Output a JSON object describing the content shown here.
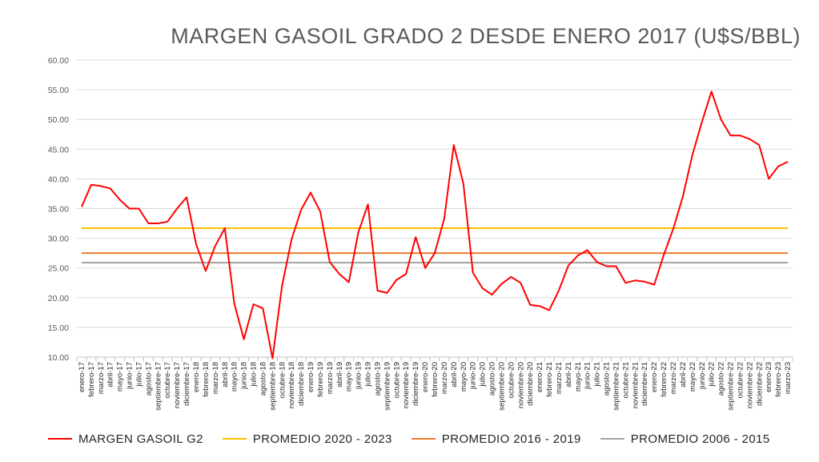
{
  "chart_data": {
    "type": "line",
    "title": "MARGEN GASOIL GRADO 2 DESDE ENERO 2017 (U$S/BBL)",
    "xlabel": "",
    "ylabel": "",
    "ylim": [
      10,
      60
    ],
    "yticks": [
      "10.00",
      "15.00",
      "20.00",
      "25.00",
      "30.00",
      "35.00",
      "40.00",
      "45.00",
      "50.00",
      "55.00",
      "60.00"
    ],
    "grid": true,
    "legend_position": "bottom",
    "categories": [
      "enero-17",
      "febrero-17",
      "marzo-17",
      "abril-17",
      "mayo-17",
      "junio-17",
      "julio-17",
      "agosto-17",
      "septiembre-17",
      "octubre-17",
      "noviembre-17",
      "diciembre-17",
      "enero-18",
      "febrero-18",
      "marzo-18",
      "abril-18",
      "mayo-18",
      "junio-18",
      "julio-18",
      "agosto-18",
      "septiembre-18",
      "octubre-18",
      "noviembre-18",
      "diciembre-18",
      "enero-19",
      "febrero-19",
      "marzo-19",
      "abril-19",
      "mayo-19",
      "junio-19",
      "julio-19",
      "agosto-19",
      "septiembre-19",
      "octubre-19",
      "noviembre-19",
      "diciembre-19",
      "enero-20",
      "febrero-20",
      "marzo-20",
      "abril-20",
      "mayo-20",
      "junio-20",
      "julio-20",
      "agosto-20",
      "septiembre-20",
      "octubre-20",
      "noviembre-20",
      "diciembre-20",
      "enero-21",
      "febrero-21",
      "marzo-21",
      "abril-21",
      "mayo-21",
      "junio-21",
      "julio-21",
      "agosto-21",
      "septiembre-21",
      "octubre-21",
      "noviembre-21",
      "diciembre-21",
      "enero-22",
      "febrero-22",
      "marzo-22",
      "abril-22",
      "mayo-22",
      "junio-22",
      "julio-22",
      "agosto-22",
      "septiembre-22",
      "octubre-22",
      "noviembre-22",
      "diciembre-22",
      "enero-23",
      "febrero-23",
      "marzo-23"
    ],
    "series": [
      {
        "name": "MARGEN GASOIL G2",
        "color": "#ff0000",
        "values": [
          35.3,
          39.0,
          38.8,
          38.4,
          36.5,
          35.0,
          35.0,
          32.5,
          32.5,
          32.8,
          35.0,
          36.9,
          29.0,
          24.5,
          28.7,
          31.7,
          19.0,
          13.0,
          18.9,
          18.2,
          9.8,
          22.0,
          29.8,
          34.8,
          37.7,
          34.5,
          26.0,
          24.0,
          22.6,
          31.0,
          35.7,
          21.2,
          20.8,
          23.0,
          24.0,
          30.2,
          25.0,
          27.5,
          33.3,
          45.7,
          39.2,
          24.2,
          21.6,
          20.5,
          22.3,
          23.5,
          22.5,
          18.8,
          18.6,
          17.9,
          21.2,
          25.4,
          27.1,
          28.0,
          26.0,
          25.3,
          25.3,
          22.5,
          22.9,
          22.7,
          22.2,
          27.2,
          31.6,
          37.0,
          44.0,
          49.6,
          54.7,
          50.0,
          47.3,
          47.3,
          46.7,
          45.7,
          40.0,
          42.1,
          42.9
        ]
      },
      {
        "name": "PROMEDIO 2020 - 2023",
        "color": "#ffc000",
        "value": 31.7
      },
      {
        "name": "PROMEDIO 2016 - 2019",
        "color": "#ed7d31",
        "value": 27.5
      },
      {
        "name": "PROMEDIO 2006 - 2015",
        "color": "#a5a5a5",
        "value": 25.9
      }
    ]
  }
}
